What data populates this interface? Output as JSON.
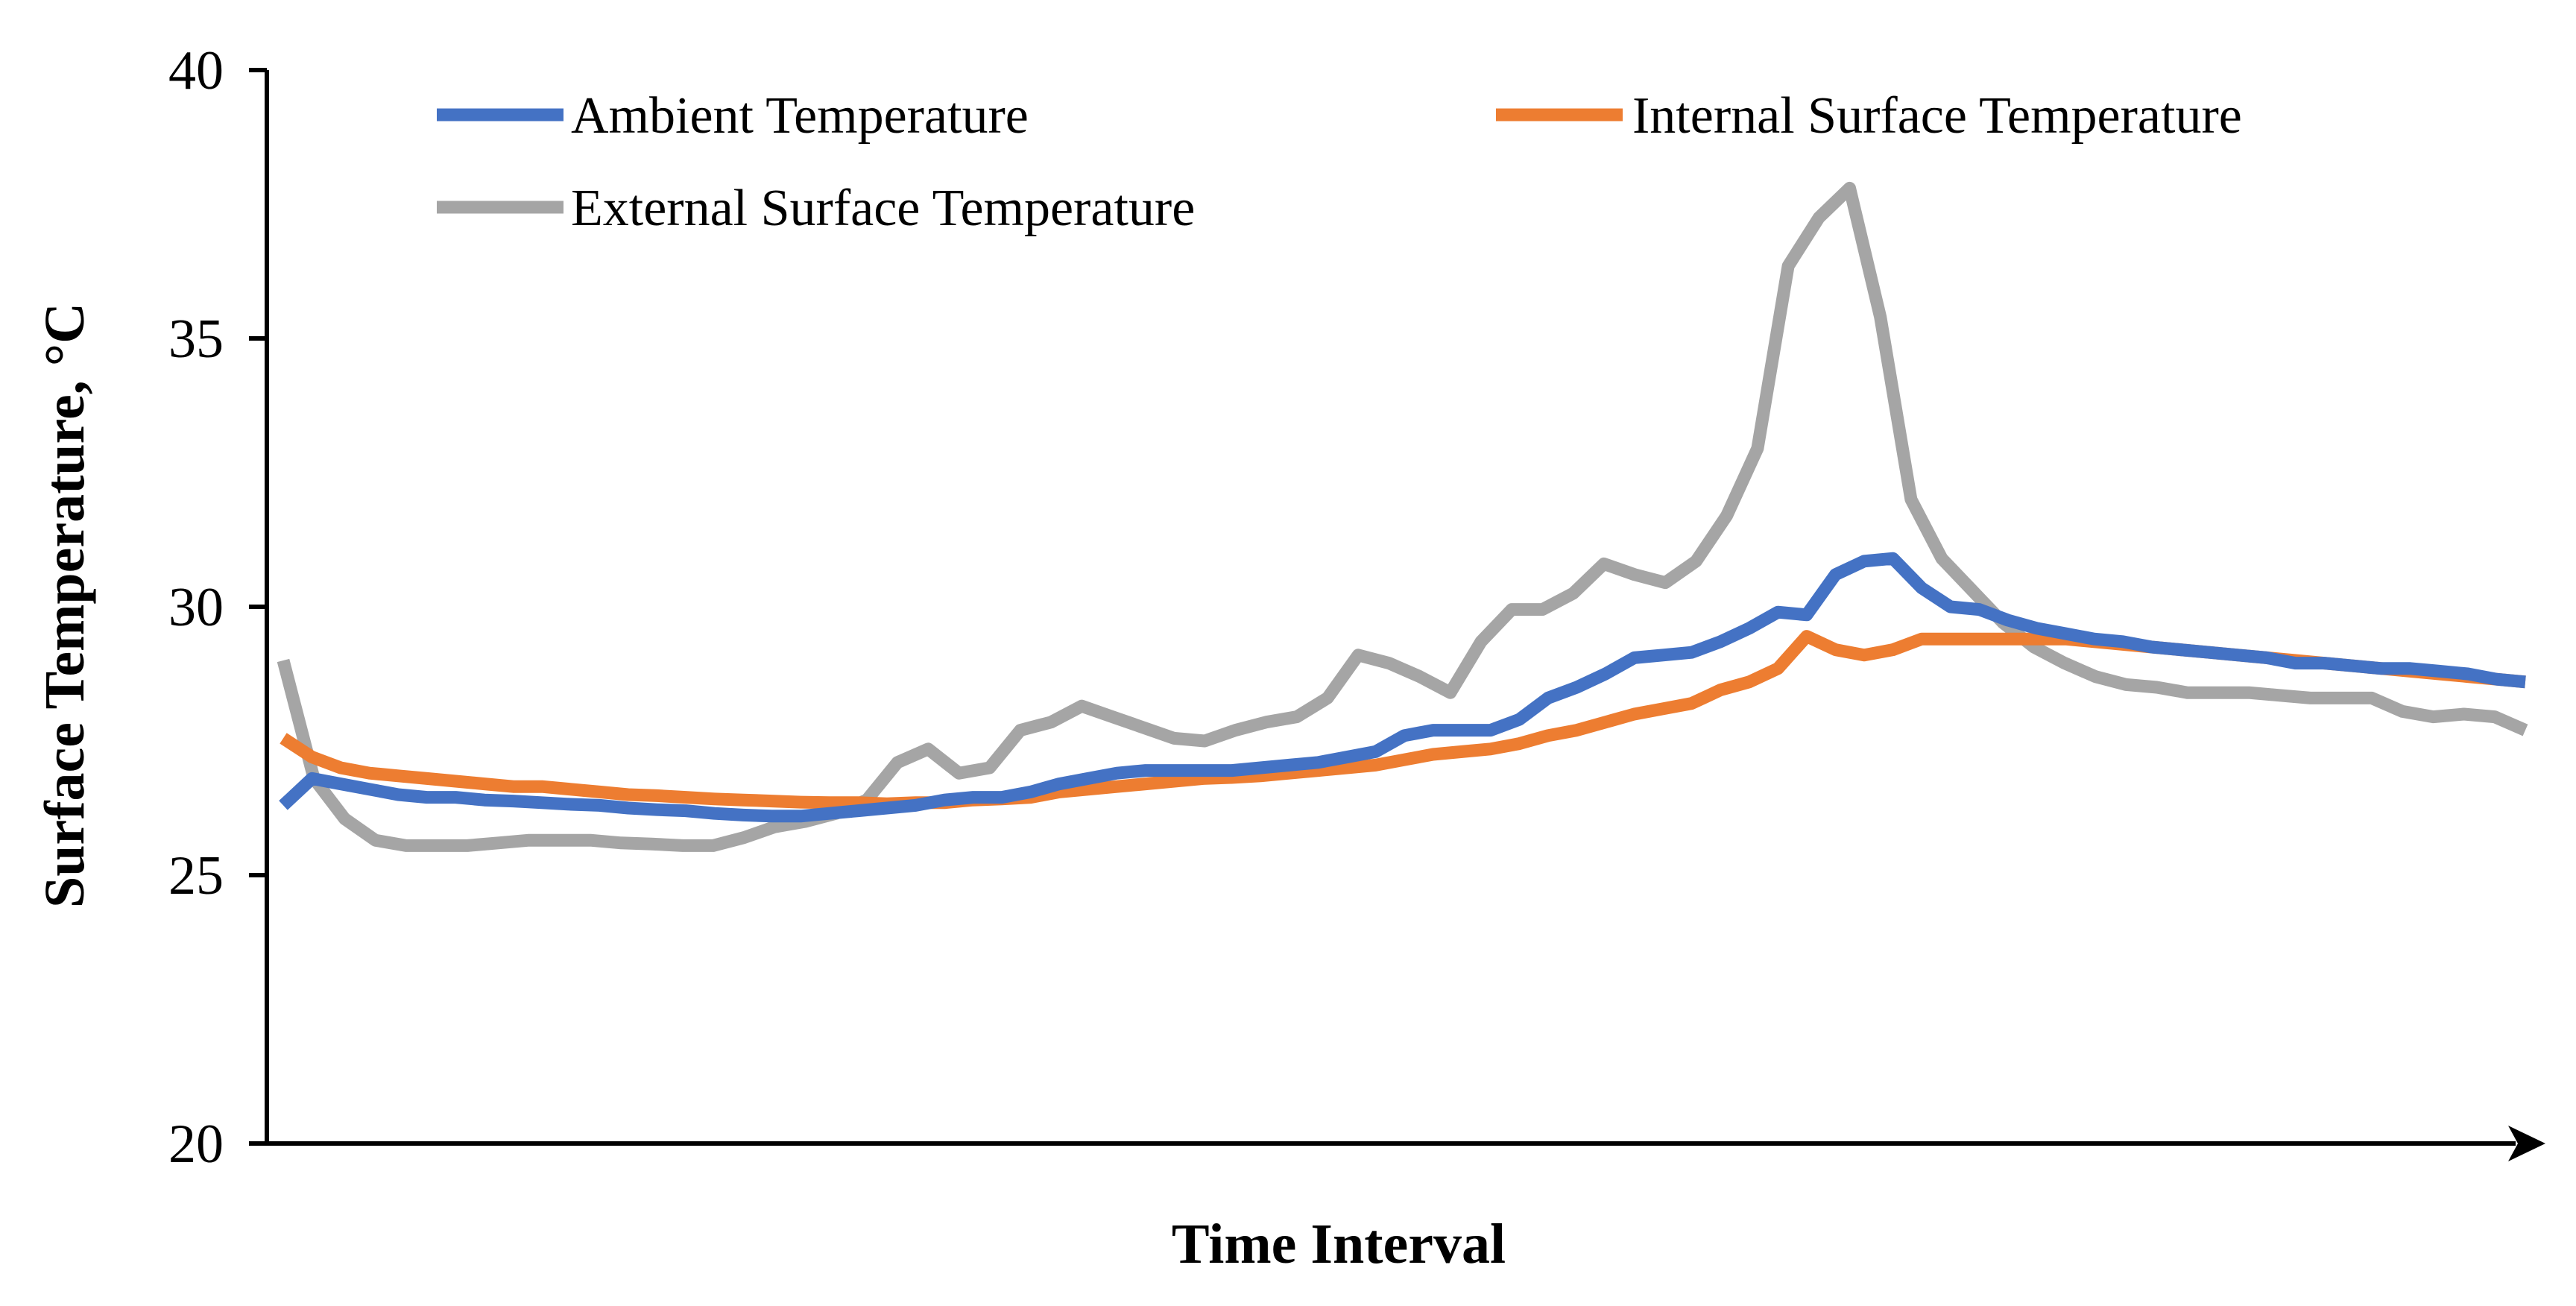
{
  "chart_data": {
    "type": "line",
    "title": "",
    "xlabel": "Time Interval",
    "ylabel": "Surface Temperature, °C",
    "ylim": [
      20,
      40
    ],
    "yticks": [
      "20",
      "25",
      "30",
      "35",
      "40"
    ],
    "grid": false,
    "legend": "top",
    "colors": {
      "ambient": "#4472C4",
      "internal": "#ED7D31",
      "external": "#A5A5A5"
    },
    "series": [
      {
        "key": "ambient",
        "name": "Ambient Temperature",
        "values": [
          26.3,
          26.8,
          26.7,
          26.6,
          26.5,
          26.45,
          26.45,
          26.4,
          26.38,
          26.35,
          26.32,
          26.3,
          26.25,
          26.22,
          26.2,
          26.15,
          26.12,
          26.1,
          26.1,
          26.15,
          26.2,
          26.25,
          26.3,
          26.4,
          26.45,
          26.45,
          26.55,
          26.7,
          26.8,
          26.9,
          26.95,
          26.95,
          26.95,
          26.95,
          27.0,
          27.05,
          27.1,
          27.2,
          27.3,
          27.6,
          27.7,
          27.7,
          27.7,
          27.9,
          28.3,
          28.5,
          28.75,
          29.05,
          29.1,
          29.15,
          29.35,
          29.6,
          29.9,
          29.85,
          30.6,
          30.85,
          30.9,
          30.35,
          30.0,
          29.95,
          29.75,
          29.6,
          29.5,
          29.4,
          29.35,
          29.25,
          29.2,
          29.15,
          29.1,
          29.05,
          28.95,
          28.95,
          28.9,
          28.85,
          28.85,
          28.8,
          28.75,
          28.65,
          28.6
        ]
      },
      {
        "key": "internal",
        "name": "Internal Surface Temperature",
        "values": [
          27.55,
          27.2,
          27.0,
          26.9,
          26.85,
          26.8,
          26.75,
          26.7,
          26.65,
          26.65,
          26.6,
          26.55,
          26.5,
          26.48,
          26.45,
          26.42,
          26.4,
          26.38,
          26.36,
          26.35,
          26.35,
          26.33,
          26.35,
          26.35,
          26.4,
          26.42,
          26.45,
          26.55,
          26.6,
          26.65,
          26.7,
          26.75,
          26.8,
          26.82,
          26.85,
          26.9,
          26.95,
          27.0,
          27.05,
          27.15,
          27.25,
          27.3,
          27.35,
          27.45,
          27.6,
          27.7,
          27.85,
          28.0,
          28.1,
          28.2,
          28.45,
          28.6,
          28.85,
          29.45,
          29.2,
          29.1,
          29.2,
          29.4,
          29.4,
          29.4,
          29.4,
          29.4,
          29.4,
          29.35,
          29.3,
          29.25,
          29.2,
          29.15,
          29.1,
          29.05,
          29.0,
          28.95,
          28.9,
          28.85,
          28.8,
          28.75,
          28.7,
          28.65,
          28.6
        ]
      },
      {
        "key": "external",
        "name": "External Surface Temperature",
        "values": [
          29.0,
          26.8,
          26.05,
          25.65,
          25.55,
          25.55,
          25.55,
          25.6,
          25.65,
          25.65,
          25.65,
          25.6,
          25.58,
          25.55,
          25.55,
          25.7,
          25.9,
          26.0,
          26.15,
          26.4,
          27.1,
          27.35,
          26.9,
          27.0,
          27.7,
          27.85,
          28.15,
          27.95,
          27.75,
          27.55,
          27.5,
          27.7,
          27.85,
          27.95,
          28.3,
          29.1,
          28.95,
          28.7,
          28.4,
          29.35,
          29.95,
          29.95,
          30.25,
          30.8,
          30.6,
          30.45,
          30.85,
          31.7,
          32.95,
          36.35,
          37.25,
          37.8,
          35.4,
          32.0,
          30.9,
          30.3,
          29.7,
          29.25,
          28.95,
          28.7,
          28.55,
          28.5,
          28.4,
          28.4,
          28.4,
          28.35,
          28.3,
          28.3,
          28.3,
          28.05,
          27.95,
          28.0,
          27.95,
          27.7
        ]
      }
    ]
  }
}
